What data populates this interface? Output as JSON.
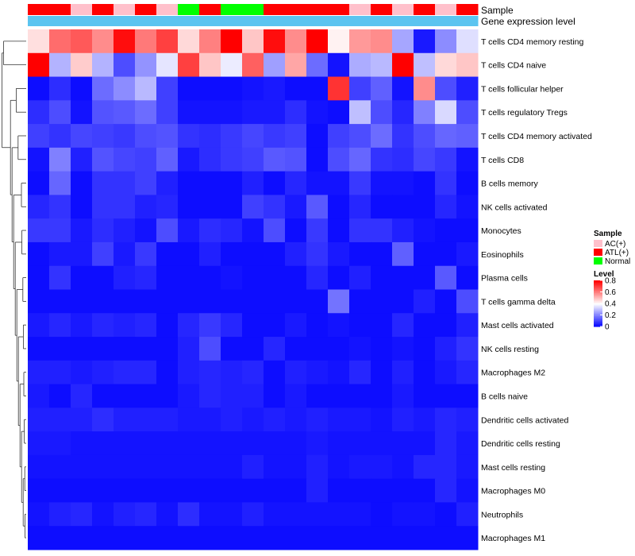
{
  "chart_data": {
    "type": "heatmap",
    "title": "",
    "annotation_tracks": [
      {
        "name": "Sample"
      },
      {
        "name": "Gene expression level"
      }
    ],
    "columns": [
      {
        "sample": "ATL(+)"
      },
      {
        "sample": "ATL(+)"
      },
      {
        "sample": "AC(+)"
      },
      {
        "sample": "ATL(+)"
      },
      {
        "sample": "AC(+)"
      },
      {
        "sample": "ATL(+)"
      },
      {
        "sample": "AC(+)"
      },
      {
        "sample": "Normal"
      },
      {
        "sample": "ATL(+)"
      },
      {
        "sample": "Normal"
      },
      {
        "sample": "Normal"
      },
      {
        "sample": "ATL(+)"
      },
      {
        "sample": "ATL(+)"
      },
      {
        "sample": "ATL(+)"
      },
      {
        "sample": "ATL(+)"
      },
      {
        "sample": "AC(+)"
      },
      {
        "sample": "ATL(+)"
      },
      {
        "sample": "AC(+)"
      },
      {
        "sample": "ATL(+)"
      },
      {
        "sample": "AC(+)"
      },
      {
        "sample": "ATL(+)"
      }
    ],
    "rows": [
      "T cells CD4 memory resting",
      "T cells CD4 naive",
      "T cells follicular helper",
      "T cells regulatory  Tregs",
      "T cells CD4 memory activated",
      "T cells CD8",
      "B cells memory",
      "NK cells activated",
      "Monocytes",
      "Eosinophils",
      "Plasma cells",
      "T cells gamma delta",
      "Mast cells activated",
      "NK cells resting",
      "Macrophages M2",
      "B cells naive",
      "Dendritic cells activated",
      "Dendritic cells resting",
      "Mast cells resting",
      "Macrophages M0",
      "Neutrophils",
      "Macrophages M1"
    ],
    "values": [
      [
        0.45,
        0.63,
        0.66,
        0.58,
        0.78,
        0.61,
        0.7,
        0.46,
        0.6,
        0.8,
        0.49,
        0.78,
        0.58,
        0.8,
        0.42,
        0.56,
        0.58,
        0.26,
        0.04,
        0.22,
        0.35
      ],
      [
        0.8,
        0.28,
        0.48,
        0.28,
        0.12,
        0.23,
        0.36,
        0.7,
        0.49,
        0.37,
        0.65,
        0.25,
        0.54,
        0.17,
        0.03,
        0.27,
        0.29,
        0.8,
        0.3,
        0.46,
        0.49
      ],
      [
        0.02,
        0.07,
        0.02,
        0.17,
        0.22,
        0.29,
        0.1,
        0.02,
        0.02,
        0.02,
        0.03,
        0.04,
        0.02,
        0.02,
        0.72,
        0.1,
        0.15,
        0.03,
        0.58,
        0.12,
        0.05
      ],
      [
        0.07,
        0.12,
        0.03,
        0.13,
        0.14,
        0.17,
        0.1,
        0.03,
        0.03,
        0.03,
        0.04,
        0.04,
        0.07,
        0.03,
        0.02,
        0.3,
        0.12,
        0.06,
        0.2,
        0.34,
        0.12
      ],
      [
        0.1,
        0.08,
        0.11,
        0.1,
        0.09,
        0.12,
        0.13,
        0.08,
        0.07,
        0.09,
        0.11,
        0.09,
        0.1,
        0.02,
        0.1,
        0.12,
        0.17,
        0.08,
        0.12,
        0.16,
        0.15
      ],
      [
        0.03,
        0.2,
        0.05,
        0.13,
        0.11,
        0.1,
        0.15,
        0.04,
        0.07,
        0.09,
        0.1,
        0.14,
        0.13,
        0.02,
        0.12,
        0.16,
        0.08,
        0.07,
        0.11,
        0.09,
        0.03
      ],
      [
        0.02,
        0.16,
        0.02,
        0.08,
        0.08,
        0.1,
        0.05,
        0.02,
        0.02,
        0.02,
        0.05,
        0.02,
        0.06,
        0.03,
        0.03,
        0.09,
        0.03,
        0.03,
        0.02,
        0.08,
        0.02
      ],
      [
        0.06,
        0.08,
        0.02,
        0.08,
        0.08,
        0.05,
        0.06,
        0.02,
        0.02,
        0.02,
        0.1,
        0.08,
        0.04,
        0.14,
        0.02,
        0.06,
        0.02,
        0.02,
        0.02,
        0.06,
        0.03
      ],
      [
        0.09,
        0.09,
        0.04,
        0.07,
        0.05,
        0.03,
        0.12,
        0.04,
        0.07,
        0.06,
        0.03,
        0.12,
        0.02,
        0.09,
        0.02,
        0.08,
        0.08,
        0.05,
        0.03,
        0.02,
        0.02
      ],
      [
        0.02,
        0.04,
        0.04,
        0.1,
        0.04,
        0.09,
        0.02,
        0.02,
        0.05,
        0.02,
        0.02,
        0.02,
        0.05,
        0.08,
        0.04,
        0.02,
        0.02,
        0.15,
        0.02,
        0.02,
        0.04
      ],
      [
        0.02,
        0.08,
        0.02,
        0.02,
        0.05,
        0.06,
        0.02,
        0.02,
        0.02,
        0.03,
        0.02,
        0.02,
        0.02,
        0.06,
        0.02,
        0.05,
        0.02,
        0.02,
        0.02,
        0.14,
        0.02
      ],
      [
        0.02,
        0.02,
        0.02,
        0.02,
        0.02,
        0.02,
        0.02,
        0.02,
        0.02,
        0.02,
        0.02,
        0.02,
        0.02,
        0.02,
        0.18,
        0.02,
        0.02,
        0.02,
        0.05,
        0.02,
        0.12
      ],
      [
        0.04,
        0.06,
        0.04,
        0.06,
        0.05,
        0.06,
        0.02,
        0.06,
        0.09,
        0.06,
        0.02,
        0.02,
        0.04,
        0.02,
        0.03,
        0.02,
        0.02,
        0.06,
        0.02,
        0.02,
        0.05
      ],
      [
        0.02,
        0.02,
        0.02,
        0.02,
        0.02,
        0.02,
        0.02,
        0.05,
        0.12,
        0.02,
        0.02,
        0.06,
        0.02,
        0.02,
        0.02,
        0.03,
        0.02,
        0.03,
        0.02,
        0.05,
        0.08
      ],
      [
        0.05,
        0.05,
        0.04,
        0.05,
        0.06,
        0.06,
        0.02,
        0.05,
        0.06,
        0.05,
        0.06,
        0.02,
        0.05,
        0.04,
        0.03,
        0.06,
        0.02,
        0.05,
        0.02,
        0.04,
        0.06
      ],
      [
        0.04,
        0.02,
        0.06,
        0.02,
        0.02,
        0.02,
        0.02,
        0.04,
        0.06,
        0.05,
        0.05,
        0.02,
        0.04,
        0.02,
        0.02,
        0.02,
        0.02,
        0.04,
        0.02,
        0.02,
        0.02
      ],
      [
        0.05,
        0.05,
        0.05,
        0.07,
        0.05,
        0.05,
        0.05,
        0.04,
        0.04,
        0.05,
        0.04,
        0.05,
        0.04,
        0.05,
        0.04,
        0.04,
        0.03,
        0.05,
        0.04,
        0.06,
        0.05
      ],
      [
        0.04,
        0.04,
        0.03,
        0.03,
        0.03,
        0.03,
        0.03,
        0.03,
        0.03,
        0.03,
        0.03,
        0.03,
        0.03,
        0.04,
        0.03,
        0.03,
        0.03,
        0.03,
        0.03,
        0.06,
        0.04
      ],
      [
        0.03,
        0.03,
        0.03,
        0.03,
        0.03,
        0.03,
        0.03,
        0.03,
        0.03,
        0.03,
        0.05,
        0.03,
        0.03,
        0.05,
        0.03,
        0.04,
        0.04,
        0.03,
        0.06,
        0.06,
        0.04
      ],
      [
        0.02,
        0.02,
        0.02,
        0.02,
        0.02,
        0.02,
        0.02,
        0.02,
        0.02,
        0.02,
        0.02,
        0.02,
        0.02,
        0.05,
        0.02,
        0.02,
        0.02,
        0.02,
        0.02,
        0.06,
        0.03
      ],
      [
        0.03,
        0.05,
        0.06,
        0.03,
        0.05,
        0.06,
        0.03,
        0.07,
        0.03,
        0.03,
        0.05,
        0.03,
        0.03,
        0.03,
        0.03,
        0.03,
        0.02,
        0.03,
        0.03,
        0.02,
        0.05
      ],
      [
        0.02,
        0.02,
        0.02,
        0.02,
        0.02,
        0.02,
        0.02,
        0.02,
        0.02,
        0.02,
        0.02,
        0.02,
        0.02,
        0.02,
        0.02,
        0.02,
        0.02,
        0.02,
        0.02,
        0.02,
        0.02
      ]
    ],
    "row_dendrogram": [
      {
        "a": 0,
        "b": 1,
        "height": 0.95
      },
      {
        "a": 2,
        "b": 3,
        "height": 0.42
      },
      {
        "a": 4,
        "b": 5,
        "height": 0.34
      },
      {
        "a": 6,
        "b": 7,
        "height": 0.2
      },
      {
        "a": 8,
        "b": 9,
        "height": 0.18
      },
      {
        "a": 10,
        "b": 11,
        "height": 0.14
      },
      {
        "a": 12,
        "b": 13,
        "height": 0.12
      },
      {
        "a": 14,
        "b": 15,
        "height": 0.1
      },
      {
        "a": 16,
        "b": 17,
        "height": 0.08
      },
      {
        "a": 18,
        "b": 19,
        "height": 0.06
      },
      {
        "a": 20,
        "b": 21,
        "height": 0.05
      }
    ],
    "legend": {
      "sample": {
        "title": "Sample",
        "items": [
          {
            "label": "AC(+)",
            "color": "#FFC0CB"
          },
          {
            "label": "ATL(+)",
            "color": "#FF0000"
          },
          {
            "label": "Normal",
            "color": "#00FF00"
          }
        ]
      },
      "level": {
        "title": "Level",
        "ticks": [
          {
            "value": 0.8,
            "label": "0.8"
          },
          {
            "value": 0.6,
            "label": "0.6"
          },
          {
            "value": 0.4,
            "label": "0.4"
          },
          {
            "value": 0.2,
            "label": "0.2"
          },
          {
            "value": 0,
            "label": "0"
          }
        ],
        "range": [
          0,
          0.8
        ]
      }
    },
    "colors": {
      "low": "#0000FF",
      "mid": "#FFFFFF",
      "high": "#FF0000",
      "expression_track": "#5BC4F0"
    }
  }
}
